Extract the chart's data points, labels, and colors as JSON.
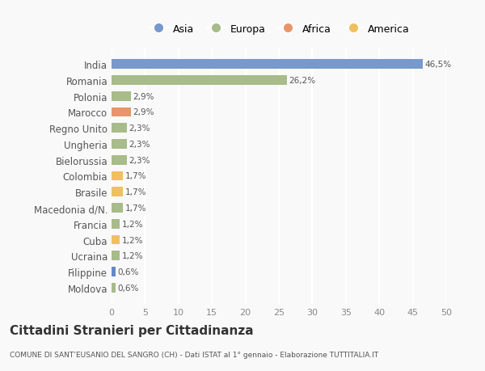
{
  "categories": [
    "Moldova",
    "Filippine",
    "Ucraina",
    "Cuba",
    "Francia",
    "Macedonia d/N.",
    "Brasile",
    "Colombia",
    "Bielorussia",
    "Ungheria",
    "Regno Unito",
    "Marocco",
    "Polonia",
    "Romania",
    "India"
  ],
  "values": [
    0.6,
    0.6,
    1.2,
    1.2,
    1.2,
    1.7,
    1.7,
    1.7,
    2.3,
    2.3,
    2.3,
    2.9,
    2.9,
    26.2,
    46.5
  ],
  "labels": [
    "0,6%",
    "0,6%",
    "1,2%",
    "1,2%",
    "1,2%",
    "1,7%",
    "1,7%",
    "1,7%",
    "2,3%",
    "2,3%",
    "2,3%",
    "2,9%",
    "2,9%",
    "26,2%",
    "46,5%"
  ],
  "colors": [
    "#a8bb8a",
    "#6688cc",
    "#a8bb8a",
    "#f0c060",
    "#a8bb8a",
    "#a8bb8a",
    "#f0c060",
    "#f0c060",
    "#a8bb8a",
    "#a8bb8a",
    "#a8bb8a",
    "#e8956a",
    "#a8bb8a",
    "#a8bb8a",
    "#7799cc"
  ],
  "legend": [
    {
      "label": "Asia",
      "color": "#7799cc"
    },
    {
      "label": "Europa",
      "color": "#a8bb8a"
    },
    {
      "label": "Africa",
      "color": "#e8956a"
    },
    {
      "label": "America",
      "color": "#f0c060"
    }
  ],
  "title": "Cittadini Stranieri per Cittadinanza",
  "subtitle": "COMUNE DI SANT’EUSANIO DEL SANGRO (CH) - Dati ISTAT al 1° gennaio - Elaborazione TUTTITALIA.IT",
  "xlim": [
    0,
    50
  ],
  "xticks": [
    0,
    5,
    10,
    15,
    20,
    25,
    30,
    35,
    40,
    45,
    50
  ],
  "background_color": "#f9f9f9",
  "grid_color": "#ffffff",
  "bar_height": 0.6
}
